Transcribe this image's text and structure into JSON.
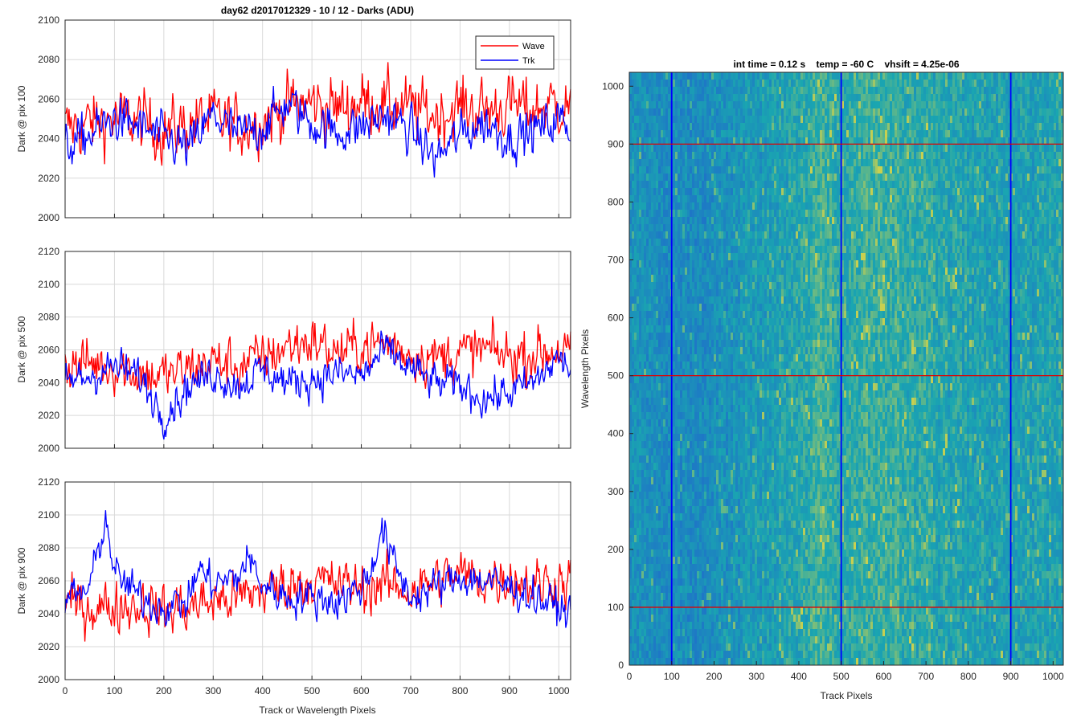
{
  "figure": {
    "title": "day62 d2017012329 - 10 / 12 - Darks (ADU)",
    "right_title": "int time = 0.12 s    temp = -60 C    vhsift = 4.25e-06"
  },
  "colors": {
    "wave": "#ff0000",
    "trk": "#0000ff",
    "grid": "#d9d9d9",
    "heat_low": "#1e73c8",
    "heat_mid": "#1aa6b0",
    "heat_high": "#c8d050"
  },
  "chart_data": [
    {
      "type": "line",
      "id": "pix100",
      "ylabel": "Dark @ pix 100",
      "xlabel": "",
      "xlim": [
        0,
        1024
      ],
      "ylim": [
        2000,
        2100
      ],
      "xticks": [
        0,
        100,
        200,
        300,
        400,
        500,
        600,
        700,
        800,
        900,
        1000
      ],
      "yticks": [
        2000,
        2020,
        2040,
        2060,
        2080,
        2100
      ],
      "grid": true,
      "legend": {
        "placement": "top-right",
        "entries": [
          "Wave",
          "Trk"
        ]
      },
      "series": [
        {
          "name": "Wave",
          "color": "#ff0000",
          "x": [
            0,
            50,
            100,
            150,
            200,
            250,
            300,
            350,
            400,
            450,
            500,
            550,
            600,
            650,
            700,
            750,
            800,
            850,
            900,
            950,
            1000,
            1024
          ],
          "y": [
            2045,
            2048,
            2050,
            2049,
            2044,
            2047,
            2050,
            2046,
            2049,
            2056,
            2058,
            2055,
            2059,
            2057,
            2055,
            2052,
            2056,
            2054,
            2057,
            2055,
            2058,
            2056
          ]
        },
        {
          "name": "Trk",
          "color": "#0000ff",
          "x": [
            0,
            50,
            100,
            150,
            200,
            250,
            300,
            350,
            400,
            450,
            500,
            550,
            600,
            650,
            700,
            750,
            800,
            850,
            900,
            950,
            1000,
            1024
          ],
          "y": [
            2035,
            2042,
            2050,
            2046,
            2040,
            2035,
            2052,
            2042,
            2046,
            2058,
            2048,
            2043,
            2046,
            2052,
            2044,
            2030,
            2042,
            2048,
            2040,
            2044,
            2050,
            2046
          ]
        }
      ]
    },
    {
      "type": "line",
      "id": "pix500",
      "ylabel": "Dark @ pix 500",
      "xlabel": "",
      "xlim": [
        0,
        1024
      ],
      "ylim": [
        2000,
        2120
      ],
      "xticks": [
        0,
        100,
        200,
        300,
        400,
        500,
        600,
        700,
        800,
        900,
        1000
      ],
      "yticks": [
        2000,
        2020,
        2040,
        2060,
        2080,
        2100,
        2120
      ],
      "grid": true,
      "series": [
        {
          "name": "Wave",
          "color": "#ff0000",
          "x": [
            0,
            50,
            100,
            150,
            200,
            250,
            300,
            350,
            400,
            450,
            500,
            550,
            600,
            650,
            700,
            750,
            800,
            850,
            900,
            950,
            1000,
            1024
          ],
          "y": [
            2050,
            2052,
            2050,
            2046,
            2044,
            2048,
            2053,
            2050,
            2055,
            2062,
            2066,
            2058,
            2062,
            2064,
            2058,
            2055,
            2058,
            2060,
            2056,
            2058,
            2060,
            2058
          ]
        },
        {
          "name": "Trk",
          "color": "#0000ff",
          "x": [
            0,
            50,
            100,
            150,
            200,
            250,
            300,
            350,
            400,
            450,
            500,
            550,
            600,
            650,
            700,
            750,
            800,
            850,
            900,
            950,
            1000,
            1024
          ],
          "y": [
            2040,
            2044,
            2050,
            2044,
            2020,
            2038,
            2046,
            2038,
            2048,
            2040,
            2042,
            2046,
            2044,
            2060,
            2048,
            2040,
            2038,
            2030,
            2034,
            2040,
            2055,
            2048
          ]
        }
      ]
    },
    {
      "type": "line",
      "id": "pix900",
      "ylabel": "Dark @ pix 900",
      "xlabel": "Track or Wavelength Pixels",
      "xlim": [
        0,
        1024
      ],
      "ylim": [
        2000,
        2120
      ],
      "xticks": [
        0,
        100,
        200,
        300,
        400,
        500,
        600,
        700,
        800,
        900,
        1000
      ],
      "yticks": [
        2000,
        2020,
        2040,
        2060,
        2080,
        2100,
        2120
      ],
      "grid": true,
      "series": [
        {
          "name": "Wave",
          "color": "#ff0000",
          "x": [
            0,
            50,
            100,
            150,
            200,
            250,
            300,
            350,
            400,
            450,
            500,
            550,
            600,
            650,
            700,
            750,
            800,
            850,
            900,
            950,
            1000,
            1024
          ],
          "y": [
            2046,
            2044,
            2044,
            2046,
            2042,
            2044,
            2048,
            2050,
            2054,
            2058,
            2060,
            2058,
            2056,
            2058,
            2054,
            2060,
            2064,
            2060,
            2062,
            2058,
            2060,
            2058
          ]
        },
        {
          "name": "Trk",
          "color": "#0000ff",
          "x": [
            0,
            30,
            50,
            70,
            80,
            90,
            100,
            130,
            150,
            200,
            250,
            270,
            300,
            350,
            370,
            400,
            450,
            500,
            550,
            600,
            620,
            640,
            650,
            670,
            700,
            750,
            800,
            850,
            900,
            950,
            1000,
            1024
          ],
          "y": [
            2050,
            2052,
            2056,
            2082,
            2098,
            2086,
            2064,
            2056,
            2050,
            2044,
            2048,
            2068,
            2058,
            2062,
            2074,
            2058,
            2050,
            2050,
            2048,
            2056,
            2066,
            2092,
            2084,
            2068,
            2050,
            2056,
            2062,
            2060,
            2056,
            2050,
            2044,
            2040
          ]
        }
      ]
    },
    {
      "type": "heatmap",
      "id": "darkframe",
      "title": "int time = 0.12 s    temp = -60 C    vhsift = 4.25e-06",
      "xlabel": "Track Pixels",
      "ylabel": "Wavelength Pixels",
      "xlim": [
        0,
        1024
      ],
      "ylim": [
        0,
        1024
      ],
      "xticks": [
        0,
        100,
        200,
        300,
        400,
        500,
        600,
        700,
        800,
        900,
        1000
      ],
      "yticks": [
        0,
        100,
        200,
        300,
        400,
        500,
        600,
        700,
        800,
        900,
        1000
      ],
      "vertical_markers": [
        100,
        500,
        900
      ],
      "horizontal_markers": [
        100,
        500,
        900
      ],
      "vertical_marker_color": "#0000ff",
      "horizontal_marker_color": "#e00000",
      "column_profile": {
        "x": [
          0,
          100,
          200,
          300,
          400,
          450,
          500,
          550,
          600,
          650,
          700,
          800,
          900,
          1000,
          1024
        ],
        "level": [
          0.3,
          0.22,
          0.25,
          0.38,
          0.48,
          0.62,
          0.52,
          0.58,
          0.6,
          0.55,
          0.52,
          0.44,
          0.42,
          0.46,
          0.45
        ]
      }
    }
  ]
}
